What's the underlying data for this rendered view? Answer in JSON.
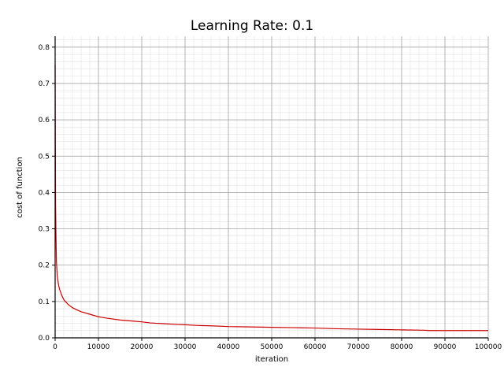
{
  "chart_data": {
    "type": "line",
    "title": "Learning Rate: 0.1",
    "xlabel": "iteration",
    "ylabel": "cost of function",
    "xlim": [
      0,
      100000
    ],
    "ylim": [
      0,
      0.83
    ],
    "grid": true,
    "x_ticks": [
      0,
      10000,
      20000,
      30000,
      40000,
      50000,
      60000,
      70000,
      80000,
      90000,
      100000
    ],
    "x_tick_labels": [
      "0",
      "10000",
      "20000",
      "30000",
      "40000",
      "50000",
      "60000",
      "70000",
      "80000",
      "90000",
      "100000"
    ],
    "y_ticks": [
      0.0,
      0.1,
      0.2,
      0.3,
      0.4,
      0.5,
      0.6,
      0.7,
      0.8
    ],
    "y_tick_labels": [
      "0.0",
      "0.1",
      "0.2",
      "0.3",
      "0.4",
      "0.5",
      "0.6",
      "0.7",
      "0.8"
    ],
    "series": [
      {
        "color": "#cc0000",
        "x": [
          0,
          50,
          100,
          200,
          300,
          500,
          800,
          1000,
          1500,
          2000,
          3000,
          4000,
          5000,
          6000,
          8000,
          10000,
          12000,
          15000,
          18000,
          20000,
          22000,
          25000,
          28000,
          30000,
          33000,
          36000,
          40000,
          45000,
          50000,
          55000,
          60000,
          65000,
          70000,
          75000,
          80000,
          85000,
          86500,
          90000,
          95000,
          100000
        ],
        "y": [
          0.75,
          0.55,
          0.37,
          0.28,
          0.21,
          0.17,
          0.145,
          0.135,
          0.118,
          0.105,
          0.092,
          0.083,
          0.077,
          0.072,
          0.065,
          0.058,
          0.054,
          0.049,
          0.046,
          0.044,
          0.041,
          0.039,
          0.037,
          0.036,
          0.034,
          0.033,
          0.031,
          0.03,
          0.029,
          0.028,
          0.027,
          0.025,
          0.024,
          0.023,
          0.022,
          0.021,
          0.02,
          0.02,
          0.02,
          0.02
        ]
      }
    ]
  }
}
